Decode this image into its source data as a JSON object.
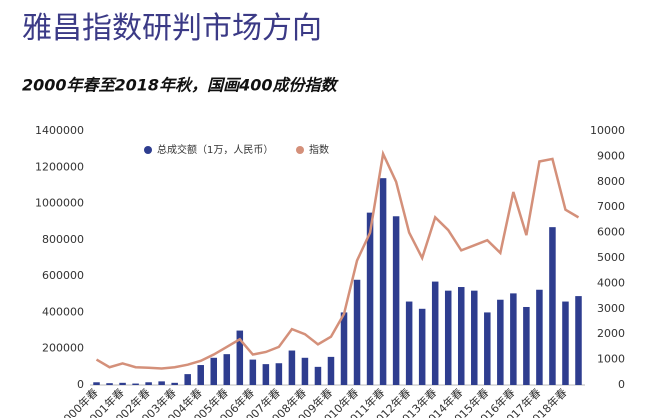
{
  "chart_data": {
    "type": "combo",
    "title": "雅昌指数研判市场方向",
    "subtitle": "2000年春至2018年秋，国画400成份指数",
    "categories": [
      "2000年春",
      null,
      "2001年春",
      null,
      "2002年春",
      null,
      "2003年春",
      null,
      "2004年春",
      null,
      "2005年春",
      null,
      "2006年春",
      null,
      "2007年春",
      null,
      "2008年春",
      null,
      "2009年春",
      null,
      "2010年春",
      null,
      "2011年春",
      null,
      "2012年春",
      null,
      "2013年春",
      null,
      "2014年春",
      null,
      "2015年春",
      null,
      "2016年春",
      null,
      "2017年春",
      null,
      "2018年春",
      null
    ],
    "series": [
      {
        "name": "总成交额（1万，人民币）",
        "type": "bar",
        "color": "#2e3d8f",
        "values": [
          15000,
          10000,
          12000,
          8000,
          15000,
          20000,
          12000,
          60000,
          110000,
          150000,
          170000,
          300000,
          140000,
          115000,
          120000,
          190000,
          150000,
          100000,
          155000,
          400000,
          580000,
          950000,
          1140000,
          930000,
          460000,
          420000,
          570000,
          520000,
          540000,
          520000,
          400000,
          470000,
          505000,
          430000,
          525000,
          870000,
          460000,
          490000
        ]
      },
      {
        "name": "指数",
        "type": "line",
        "axis": "y2",
        "color": "#d4907a",
        "values": [
          1000,
          700,
          850,
          700,
          680,
          650,
          700,
          800,
          950,
          1200,
          1500,
          1800,
          1200,
          1300,
          1500,
          2200,
          2000,
          1600,
          1900,
          2800,
          4900,
          6000,
          9100,
          8000,
          6000,
          5000,
          6600,
          6100,
          5300,
          5500,
          5700,
          5200,
          7600,
          5900,
          8800,
          8900,
          6900,
          6600
        ]
      }
    ],
    "ylim": [
      0,
      1400000
    ],
    "yticks": [
      0,
      200000,
      400000,
      600000,
      800000,
      1000000,
      1200000,
      1400000
    ],
    "y2lim": [
      0,
      10000
    ],
    "y2ticks": [
      0,
      1000,
      2000,
      3000,
      4000,
      5000,
      6000,
      7000,
      8000,
      9000,
      10000
    ],
    "legend": "top",
    "grid": false
  }
}
